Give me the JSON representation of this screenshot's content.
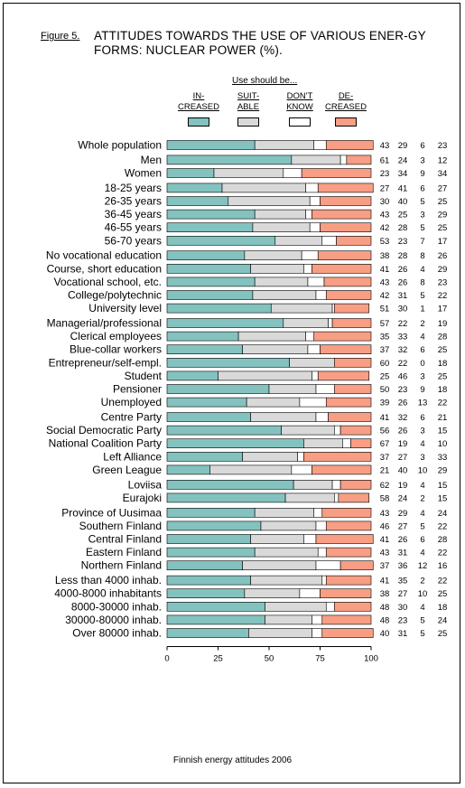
{
  "figure_label": "Figure 5.",
  "title": "ATTITUDES TOWARDS THE USE OF VARIOUS ENER-GY FORMS: NUCLEAR POWER (%).",
  "use_header": "Use should be...",
  "caption": "Finnish energy attitudes 2006",
  "colors": {
    "increased": "#83C2BF",
    "suitable": "#D9D9D9",
    "dont_know": "#FFFFFF",
    "decreased": "#F79E84"
  },
  "chart_data": {
    "type": "bar",
    "orientation": "horizontal",
    "stacked": true,
    "xlim": [
      0,
      100
    ],
    "xticks": [
      "0",
      "25",
      "50",
      "75",
      "100"
    ],
    "grid": false,
    "legend_position": "top",
    "series": [
      {
        "name": "IN-\nCREASED",
        "key": "increased"
      },
      {
        "name": "SUIT-\nABLE",
        "key": "suitable"
      },
      {
        "name": "DON'T\nKNOW",
        "key": "dont_know"
      },
      {
        "name": "DE-\nCREASED",
        "key": "decreased"
      }
    ],
    "groups": [
      {
        "rows": [
          {
            "label": "Whole population",
            "values": [
              43,
              29,
              6,
              23
            ]
          }
        ]
      },
      {
        "rows": [
          {
            "label": "Men",
            "values": [
              61,
              24,
              3,
              12
            ]
          },
          {
            "label": "Women",
            "values": [
              23,
              34,
              9,
              34
            ]
          }
        ]
      },
      {
        "rows": [
          {
            "label": "18-25 years",
            "values": [
              27,
              41,
              6,
              27
            ]
          },
          {
            "label": "26-35 years",
            "values": [
              30,
              40,
              5,
              25
            ]
          },
          {
            "label": "36-45 years",
            "values": [
              43,
              25,
              3,
              29
            ]
          },
          {
            "label": "46-55 years",
            "values": [
              42,
              28,
              5,
              25
            ]
          },
          {
            "label": "56-70 years",
            "values": [
              53,
              23,
              7,
              17
            ]
          }
        ]
      },
      {
        "rows": [
          {
            "label": "No vocational education",
            "values": [
              38,
              28,
              8,
              26
            ]
          },
          {
            "label": "Course, short education",
            "values": [
              41,
              26,
              4,
              29
            ]
          },
          {
            "label": "Vocational school, etc.",
            "values": [
              43,
              26,
              8,
              23
            ]
          },
          {
            "label": "College/polytechnic",
            "values": [
              42,
              31,
              5,
              22
            ]
          },
          {
            "label": "University level",
            "values": [
              51,
              30,
              1,
              17
            ]
          }
        ]
      },
      {
        "rows": [
          {
            "label": "Managerial/professional",
            "values": [
              57,
              22,
              2,
              19
            ]
          },
          {
            "label": "Clerical employees",
            "values": [
              35,
              33,
              4,
              28
            ]
          },
          {
            "label": "Blue-collar workers",
            "values": [
              37,
              32,
              6,
              25
            ]
          },
          {
            "label": "Entrepreneur/self-empl.",
            "values": [
              60,
              22,
              0,
              18
            ]
          },
          {
            "label": "Student",
            "values": [
              25,
              46,
              3,
              25
            ]
          },
          {
            "label": "Pensioner",
            "values": [
              50,
              23,
              9,
              18
            ]
          },
          {
            "label": "Unemployed",
            "values": [
              39,
              26,
              13,
              22
            ]
          }
        ]
      },
      {
        "rows": [
          {
            "label": "Centre Party",
            "values": [
              41,
              32,
              6,
              21
            ]
          },
          {
            "label": "Social Democratic Party",
            "values": [
              56,
              26,
              3,
              15
            ]
          },
          {
            "label": "National Coalition Party",
            "values": [
              67,
              19,
              4,
              10
            ]
          },
          {
            "label": "Left Alliance",
            "values": [
              37,
              27,
              3,
              33
            ]
          },
          {
            "label": "Green League",
            "values": [
              21,
              40,
              10,
              29
            ]
          }
        ]
      },
      {
        "rows": [
          {
            "label": "Loviisa",
            "values": [
              62,
              19,
              4,
              15
            ]
          },
          {
            "label": "Eurajoki",
            "values": [
              58,
              24,
              2,
              15
            ]
          }
        ]
      },
      {
        "rows": [
          {
            "label": "Province of Uusimaa",
            "values": [
              43,
              29,
              4,
              24
            ]
          },
          {
            "label": "Southern Finland",
            "values": [
              46,
              27,
              5,
              22
            ]
          },
          {
            "label": "Central Finland",
            "values": [
              41,
              26,
              6,
              28
            ]
          },
          {
            "label": "Eastern Finland",
            "values": [
              43,
              31,
              4,
              22
            ]
          },
          {
            "label": "Northern Finland",
            "values": [
              37,
              36,
              12,
              16
            ]
          }
        ]
      },
      {
        "rows": [
          {
            "label": "Less than 4000 inhab.",
            "values": [
              41,
              35,
              2,
              22
            ]
          },
          {
            "label": "4000-8000 inhabitants",
            "values": [
              38,
              27,
              10,
              25
            ]
          },
          {
            "label": "8000-30000 inhab.",
            "values": [
              48,
              30,
              4,
              18
            ]
          },
          {
            "label": "30000-80000 inhab.",
            "values": [
              48,
              23,
              5,
              24
            ]
          },
          {
            "label": "Over 80000 inhab.",
            "values": [
              40,
              31,
              5,
              25
            ]
          }
        ]
      }
    ]
  }
}
